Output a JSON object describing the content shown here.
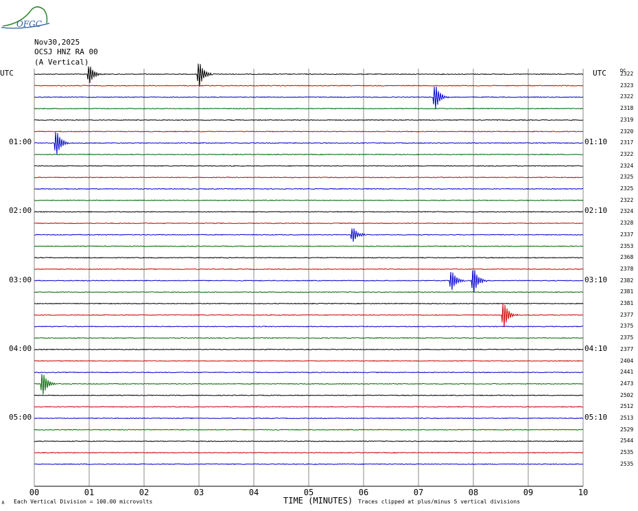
{
  "logo": {
    "text": "OFGC",
    "icon": "mountain-arc-logo-icon"
  },
  "header": {
    "date": "Nov30,2025",
    "station": "OCSJ HNZ RA 00",
    "component": "(A Vertical)"
  },
  "left_tz": "UTC",
  "right_tz": "UTC",
  "dc_label": "DC",
  "footer": {
    "left": "Each Vertical Division =  100.00 microvolts",
    "right": "Traces clipped at plus/minus 5 vertical divisions",
    "marker": "∧"
  },
  "colors": {
    "trace_cycle": [
      "#000000",
      "#cc0000",
      "#0000cc",
      "#006600"
    ],
    "grid": "#888888"
  },
  "chart_data": {
    "type": "line",
    "title": "",
    "xlabel": "TIME (MINUTES)",
    "xlim": [
      0,
      10
    ],
    "x_ticks": [
      "00",
      "01",
      "02",
      "03",
      "04",
      "05",
      "06",
      "07",
      "08",
      "09",
      "10"
    ],
    "grid": true,
    "trace_minutes": 10,
    "left_time_labels": [
      {
        "trace_index": 6,
        "text": "01:00"
      },
      {
        "trace_index": 12,
        "text": "02:00"
      },
      {
        "trace_index": 18,
        "text": "03:00"
      },
      {
        "trace_index": 24,
        "text": "04:00"
      },
      {
        "trace_index": 30,
        "text": "05:00"
      }
    ],
    "right_time_labels": [
      {
        "trace_index": 6,
        "text": "01:10"
      },
      {
        "trace_index": 12,
        "text": "02:10"
      },
      {
        "trace_index": 18,
        "text": "03:10"
      },
      {
        "trace_index": 24,
        "text": "04:10"
      },
      {
        "trace_index": 30,
        "text": "05:10"
      }
    ],
    "dc_offsets": [
      "2322",
      "2323",
      "2322",
      "2318",
      "2319",
      "2320",
      "2317",
      "2322",
      "2324",
      "2325",
      "2325",
      "2322",
      "2324",
      "2328",
      "2337",
      "2353",
      "2368",
      "2378",
      "2382",
      "2381",
      "2381",
      "2377",
      "2375",
      "2375",
      "2377",
      "2404",
      "2441",
      "2473",
      "2502",
      "2512",
      "2513",
      "2529",
      "2544",
      "2535",
      "2535"
    ],
    "events": [
      {
        "trace_index": 0,
        "minute": 1.0,
        "amplitude": 0.7
      },
      {
        "trace_index": 0,
        "minute": 3.0,
        "amplitude": 1.0
      },
      {
        "trace_index": 2,
        "minute": 7.3,
        "amplitude": 1.0
      },
      {
        "trace_index": 6,
        "minute": 0.4,
        "amplitude": 1.0
      },
      {
        "trace_index": 14,
        "minute": 5.8,
        "amplitude": 0.6
      },
      {
        "trace_index": 18,
        "minute": 7.6,
        "amplitude": 0.8
      },
      {
        "trace_index": 18,
        "minute": 8.0,
        "amplitude": 1.0
      },
      {
        "trace_index": 21,
        "minute": 8.55,
        "amplitude": 1.0
      },
      {
        "trace_index": 27,
        "minute": 0.15,
        "amplitude": 0.9
      }
    ]
  }
}
